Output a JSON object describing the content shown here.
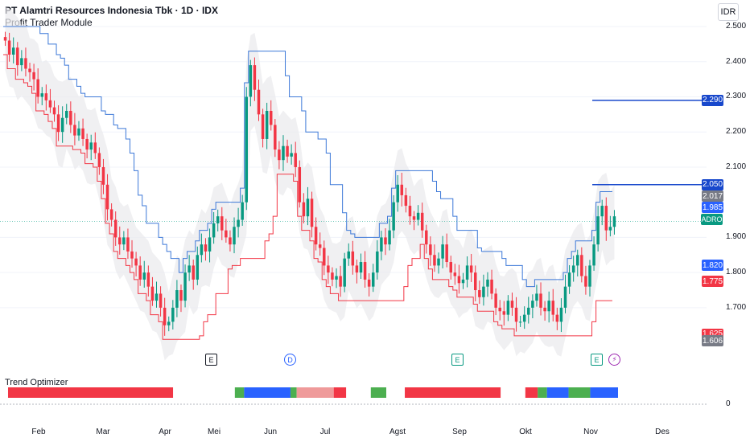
{
  "header": {
    "title": "PT Alamtri Resources Indonesia Tbk · 1D · IDX",
    "indicator": "Profit Trader Module"
  },
  "currency": "IDR",
  "symbol_tag": "ADRO",
  "oscillator": {
    "title": "Trend Optimizer",
    "zero_label": "0"
  },
  "chart_data": {
    "type": "candlestick",
    "title": "PT Alamtri Resources Indonesia Tbk · 1D · IDX",
    "y_ticks": [
      "2.500",
      "2.400",
      "2.300",
      "2.200",
      "2.100",
      "1.900",
      "1.800",
      "1.700"
    ],
    "y_tick_values": [
      2500,
      2400,
      2300,
      2200,
      2100,
      1900,
      1800,
      1700
    ],
    "ylim": [
      1600,
      2520
    ],
    "x_labels": [
      "Feb",
      "Mar",
      "Apr",
      "Mei",
      "Jun",
      "Jul",
      "Agst",
      "Sep",
      "Okt",
      "Nov",
      "Des"
    ],
    "price_labels": [
      {
        "text": "2.290",
        "value": 2290,
        "color": "#1848cc"
      },
      {
        "text": "2.050",
        "value": 2050,
        "color": "#1848cc"
      },
      {
        "text": "2.017",
        "value": 2017,
        "color": "#787b86"
      },
      {
        "text": "1.985",
        "value": 1985,
        "color": "#2962ff"
      },
      {
        "text": "1.820",
        "value": 1820,
        "color": "#2962ff"
      },
      {
        "text": "1.775",
        "value": 1775,
        "color": "#f23645"
      },
      {
        "text": "1.625",
        "value": 1625,
        "color": "#f23645"
      },
      {
        "text": "1.606",
        "value": 1606,
        "color": "#787b86"
      }
    ],
    "last_price": 1945,
    "closes": [
      2460,
      2420,
      2440,
      2390,
      2410,
      2380,
      2370,
      2350,
      2300,
      2310,
      2290,
      2270,
      2250,
      2200,
      2240,
      2260,
      2220,
      2190,
      2210,
      2180,
      2150,
      2170,
      2140,
      2100,
      2050,
      1980,
      1950,
      1900,
      1880,
      1900,
      1860,
      1840,
      1820,
      1780,
      1800,
      1760,
      1720,
      1740,
      1700,
      1650,
      1660,
      1700,
      1750,
      1720,
      1800,
      1820,
      1780,
      1850,
      1880,
      1860,
      1900,
      1940,
      1960,
      1920,
      1900,
      1880,
      1930,
      1950,
      2000,
      2300,
      2390,
      2320,
      2250,
      2180,
      2260,
      2220,
      2150,
      2120,
      2160,
      2130,
      2140,
      2100,
      2000,
      1960,
      2010,
      1930,
      1880,
      1870,
      1820,
      1800,
      1780,
      1790,
      1760,
      1840,
      1860,
      1820,
      1800,
      1830,
      1780,
      1760,
      1800,
      1860,
      1900,
      1880,
      1920,
      2000,
      2050,
      2020,
      1990,
      1960,
      1950,
      1970,
      1920,
      1880,
      1850,
      1820,
      1840,
      1880,
      1830,
      1800,
      1790,
      1770,
      1780,
      1820,
      1800,
      1750,
      1730,
      1760,
      1780,
      1740,
      1700,
      1690,
      1680,
      1720,
      1700,
      1660,
      1660,
      1680,
      1700,
      1720,
      1740,
      1700,
      1690,
      1720,
      1680,
      1660,
      1700,
      1760,
      1800,
      1820,
      1850,
      1790,
      1760,
      1820,
      1880,
      1960,
      1990,
      1920,
      1930,
      1960
    ],
    "resistance_lines": [
      2290,
      2050
    ]
  },
  "colors": {
    "up": "#089981",
    "down": "#f23645",
    "upper": "#3c78d8",
    "lower": "#f23645",
    "band": "#e9eaed"
  }
}
